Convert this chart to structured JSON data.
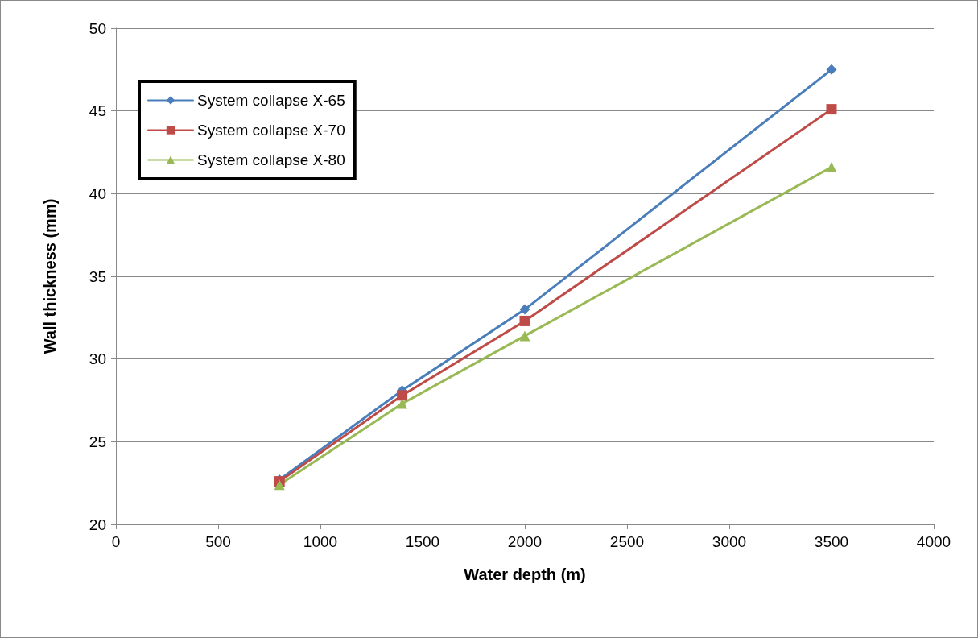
{
  "chart_data": {
    "type": "line",
    "xlabel": "Water depth (m)",
    "ylabel": "Wall thickness (mm)",
    "x": [
      800,
      1400,
      2000,
      3500
    ],
    "series": [
      {
        "name": "System collapse X-65",
        "color": "#4a7ebb",
        "marker": "diamond",
        "values": [
          22.7,
          28.1,
          33.0,
          47.5
        ]
      },
      {
        "name": "System collapse X-70",
        "color": "#be4b48",
        "marker": "square",
        "values": [
          22.6,
          27.8,
          32.3,
          45.1
        ]
      },
      {
        "name": "System collapse X-80",
        "color": "#98b954",
        "marker": "triangle",
        "values": [
          22.4,
          27.3,
          31.4,
          41.6
        ]
      }
    ],
    "xlim": [
      0,
      4000
    ],
    "xticks": [
      0,
      500,
      1000,
      1500,
      2000,
      2500,
      3000,
      3500,
      4000
    ],
    "ylim": [
      20,
      50
    ],
    "yticks": [
      20,
      25,
      30,
      35,
      40,
      45,
      50
    ],
    "grid": "y",
    "legend": "top left",
    "line_style": "solid"
  }
}
